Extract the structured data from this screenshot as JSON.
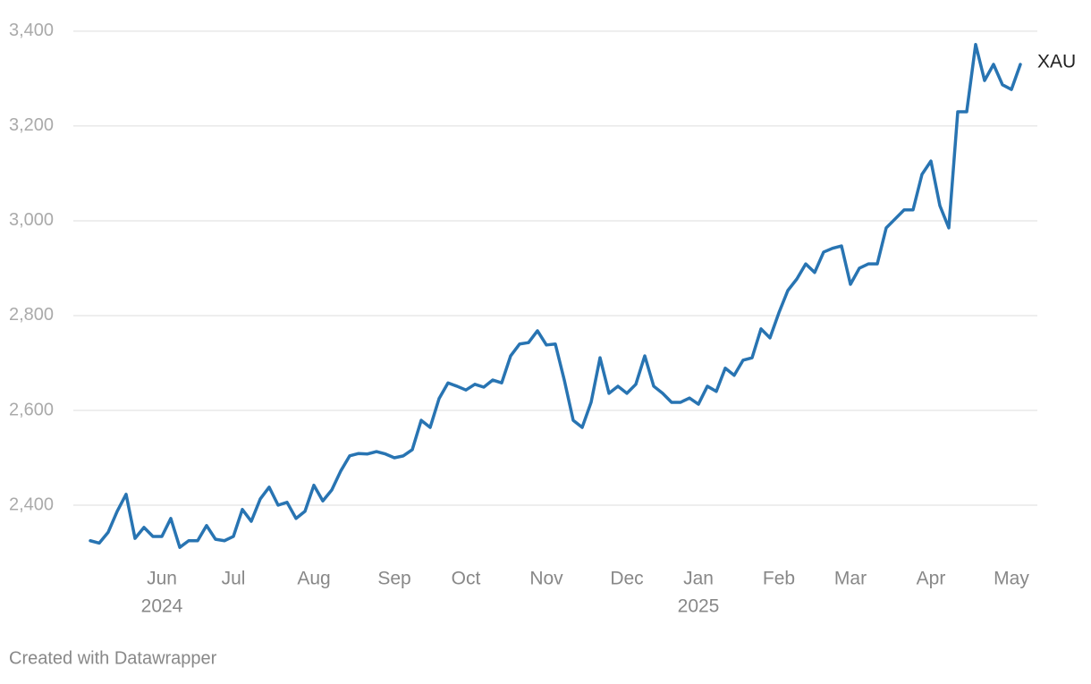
{
  "chart_data": {
    "type": "line",
    "categories": [
      null,
      null,
      null,
      null,
      null,
      null,
      null,
      null,
      "Jun",
      null,
      null,
      null,
      null,
      null,
      null,
      null,
      "Jul",
      null,
      null,
      null,
      null,
      null,
      null,
      null,
      null,
      "Aug",
      null,
      null,
      null,
      null,
      null,
      null,
      null,
      null,
      "Sep",
      null,
      null,
      null,
      null,
      null,
      null,
      null,
      "Oct",
      null,
      null,
      null,
      null,
      null,
      null,
      null,
      null,
      "Nov",
      null,
      null,
      null,
      null,
      null,
      null,
      null,
      null,
      "Dec",
      null,
      null,
      null,
      null,
      null,
      null,
      null,
      "Jan",
      null,
      null,
      null,
      null,
      null,
      null,
      null,
      null,
      "Feb",
      null,
      null,
      null,
      null,
      null,
      null,
      null,
      "Mar",
      null,
      null,
      null,
      null,
      null,
      null,
      null,
      null,
      "Apr",
      null,
      null,
      null,
      null,
      null,
      null,
      null,
      null,
      "May",
      null
    ],
    "x_years": [
      null,
      null,
      null,
      null,
      null,
      null,
      null,
      null,
      "2024",
      null,
      null,
      null,
      null,
      null,
      null,
      null,
      null,
      null,
      null,
      null,
      null,
      null,
      null,
      null,
      null,
      null,
      null,
      null,
      null,
      null,
      null,
      null,
      null,
      null,
      null,
      null,
      null,
      null,
      null,
      null,
      null,
      null,
      null,
      null,
      null,
      null,
      null,
      null,
      null,
      null,
      null,
      null,
      null,
      null,
      null,
      null,
      null,
      null,
      null,
      null,
      null,
      null,
      null,
      null,
      null,
      null,
      null,
      null,
      "2025",
      null,
      null,
      null,
      null,
      null,
      null,
      null,
      null,
      null,
      null,
      null,
      null,
      null,
      null,
      null,
      null,
      null,
      null,
      null,
      null,
      null,
      null,
      null,
      null,
      null,
      null,
      null,
      null,
      null,
      null,
      null,
      null,
      null,
      null,
      null,
      null
    ],
    "series": [
      {
        "name": "XAU",
        "color": "#2874b2",
        "values": [
          2325,
          2320,
          2343,
          2387,
          2423,
          2330,
          2353,
          2334,
          2334,
          2372,
          2311,
          2325,
          2325,
          2357,
          2328,
          2325,
          2334,
          2391,
          2366,
          2413,
          2438,
          2400,
          2406,
          2372,
          2387,
          2442,
          2409,
          2432,
          2472,
          2504,
          2509,
          2508,
          2513,
          2508,
          2500,
          2504,
          2517,
          2579,
          2564,
          2625,
          2658,
          2651,
          2643,
          2655,
          2649,
          2664,
          2658,
          2715,
          2740,
          2743,
          2768,
          2738,
          2740,
          2664,
          2579,
          2564,
          2617,
          2711,
          2636,
          2651,
          2636,
          2655,
          2715,
          2651,
          2636,
          2617,
          2617,
          2626,
          2613,
          2651,
          2640,
          2689,
          2674,
          2706,
          2711,
          2772,
          2753,
          2806,
          2853,
          2877,
          2909,
          2891,
          2934,
          2942,
          2947,
          2866,
          2900,
          2909,
          2909,
          2985,
          3004,
          3023,
          3023,
          3098,
          3126,
          3032,
          2985,
          3230,
          3230,
          3372,
          3296,
          3330,
          3287,
          3277,
          3330
        ]
      }
    ],
    "ylim": [
      2300,
      3430
    ],
    "yticks": [
      {
        "value": 2400,
        "label": "2,400"
      },
      {
        "value": 2600,
        "label": "2,600"
      },
      {
        "value": 2800,
        "label": "2,800"
      },
      {
        "value": 3000,
        "label": "3,000"
      },
      {
        "value": 3200,
        "label": "3,200"
      },
      {
        "value": 3400,
        "label": "3,400"
      }
    ],
    "grid": true,
    "footer": "Created with Datawrapper"
  }
}
